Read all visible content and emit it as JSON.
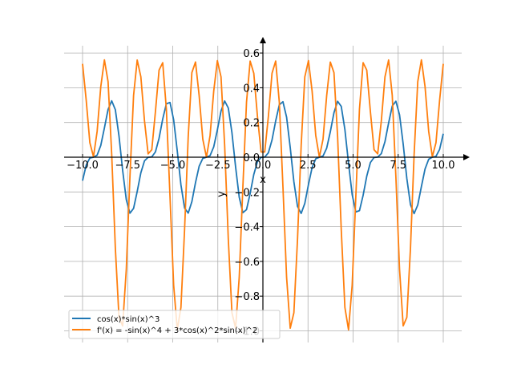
{
  "chart_data": {
    "type": "line",
    "title": "",
    "xlabel": "x",
    "ylabel": "y",
    "xlim": [
      -11,
      11.5
    ],
    "ylim": [
      -1.06,
      0.68
    ],
    "grid": true,
    "legend_position": "bottom-left",
    "x_ticks": [
      -10.0,
      -7.5,
      -5.0,
      -2.5,
      0.0,
      2.5,
      5.0,
      7.5,
      10.0
    ],
    "x_tick_labels": [
      "−10.0",
      "−7.5",
      "−5.0",
      "−2.5",
      "0.0",
      "2.5",
      "5.0",
      "7.5",
      "10.0"
    ],
    "y_ticks": [
      0.6,
      0.4,
      0.2,
      0.0,
      -0.2,
      -0.4,
      -0.6,
      -0.8,
      -1.0
    ],
    "y_tick_labels": [
      "0.6",
      "0.4",
      "0.2",
      "0.0",
      "−0.2",
      "−0.4",
      "−0.6",
      "−0.8",
      "−1.0"
    ],
    "sampling": {
      "x_start": -10,
      "x_end": 10,
      "num_points": 100
    },
    "series": [
      {
        "name": "cos(x)*sin(x)^3",
        "expression": "cos(x)*sin(x)^3",
        "color": "#1f77b4"
      },
      {
        "name": "f'(x) = -sin(x)^4 + 3*cos(x)^2*sin(x)^2",
        "expression": "-sin(x)^4 + 3*cos(x)^2*sin(x)^2",
        "color": "#ff7f0e"
      }
    ]
  }
}
